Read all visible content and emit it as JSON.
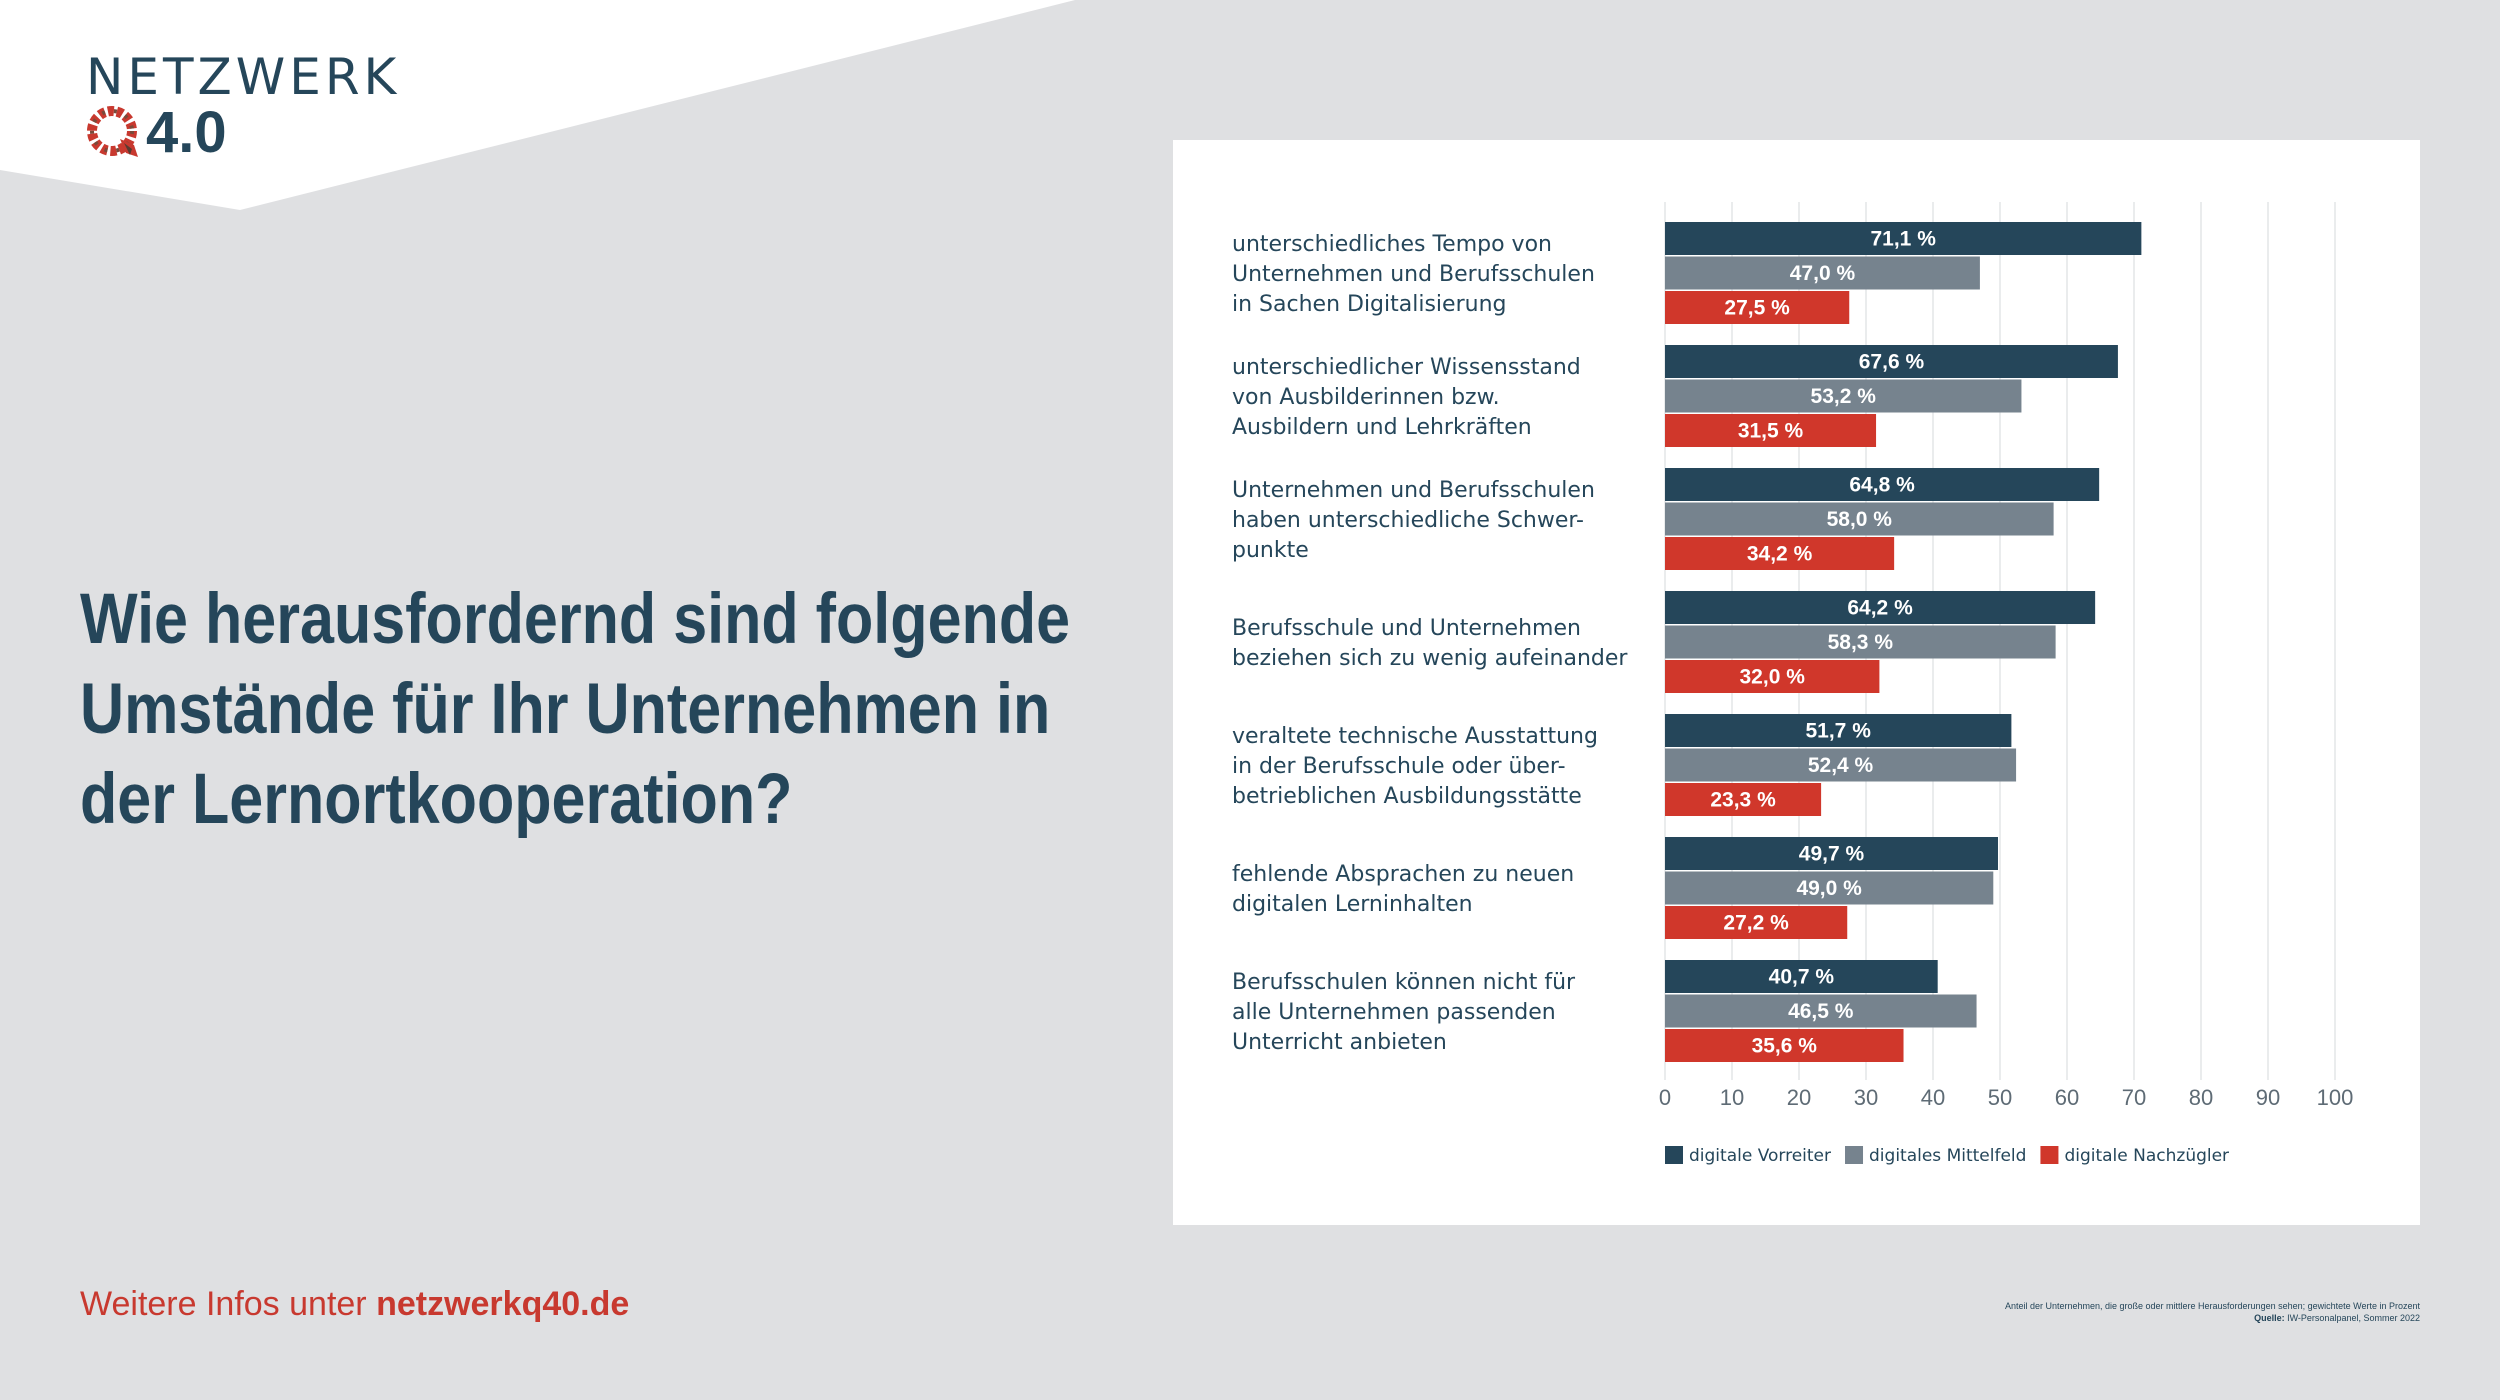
{
  "brand": {
    "name_top": "NETZWERK",
    "name_bottom": "4.0",
    "primary_color": "#25465a",
    "accent_color": "#c8392f"
  },
  "headline": {
    "lines": [
      "Wie herausfordernd sind folgende",
      "Umstände für Ihr Unternehmen in",
      "der Lernortkooperation?"
    ]
  },
  "footer": {
    "prefix": "Weitere Infos unter ",
    "link": "netzwerkq40.de"
  },
  "source": {
    "note": "Anteil der Unternehmen, die große oder mittlere Herausforderungen sehen; gewichtete Werte in Prozent",
    "label": "Quelle:",
    "text": " IW-Personalpanel, Sommer 2022"
  },
  "chart_data": {
    "type": "bar",
    "orientation": "horizontal",
    "title": "",
    "categories": [
      [
        "unterschiedliches Tempo von",
        "Unternehmen und Berufsschulen",
        "in Sachen Digitalisierung"
      ],
      [
        "unterschiedlicher Wissensstand",
        "von Ausbilderinnen bzw.",
        "Ausbildern und Lehrkräften"
      ],
      [
        "Unternehmen und Berufsschulen",
        "haben unterschiedliche Schwer-",
        "punkte"
      ],
      [
        "Berufsschule und Unternehmen",
        "beziehen sich zu wenig aufeinander"
      ],
      [
        "veraltete technische Ausstattung",
        "in der Berufsschule oder über-",
        "betrieblichen Ausbildungsstätte"
      ],
      [
        "fehlende Absprachen zu neuen",
        "digitalen Lerninhalten"
      ],
      [
        "Berufsschulen können nicht für",
        "alle Unternehmen passenden",
        "Unterricht anbieten"
      ]
    ],
    "series": [
      {
        "name": "digitale Vorreiter",
        "color": "#25465a",
        "values": [
          71.1,
          67.6,
          64.8,
          64.2,
          51.7,
          49.7,
          40.7
        ],
        "labels": [
          "71,1 %",
          "67,6 %",
          "64,8 %",
          "64,2 %",
          "51,7 %",
          "49,7 %",
          "40,7 %"
        ]
      },
      {
        "name": "digitales Mittelfeld",
        "color": "#76838e",
        "values": [
          47.0,
          53.2,
          58.0,
          58.3,
          52.4,
          49.0,
          46.5
        ],
        "labels": [
          "47,0 %",
          "53,2 %",
          "58,0 %",
          "58,3 %",
          "52,4 %",
          "49,0 %",
          "46,5 %"
        ]
      },
      {
        "name": "digitale Nachzügler",
        "color": "#d0372b",
        "values": [
          27.5,
          31.5,
          34.2,
          32.0,
          23.3,
          27.2,
          35.6
        ],
        "labels": [
          "27,5 %",
          "31,5 %",
          "34,2 %",
          "32,0 %",
          "23,3 %",
          "27,2 %",
          "35,6 %"
        ]
      }
    ],
    "xlim": [
      0,
      100
    ],
    "xticks": [
      "0",
      "10",
      "20",
      "30",
      "40",
      "50",
      "60",
      "70",
      "80",
      "90",
      "100"
    ],
    "grid": true,
    "legend_position": "bottom"
  }
}
